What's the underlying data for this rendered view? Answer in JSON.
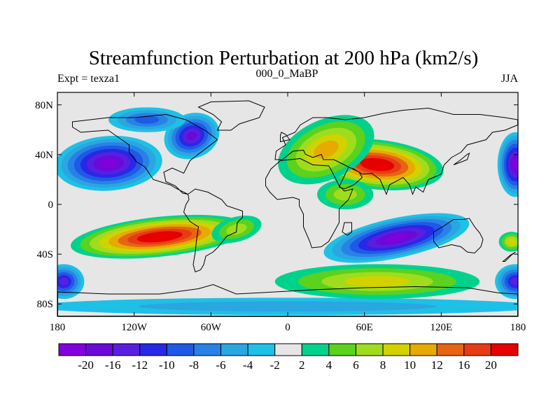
{
  "chart_data": {
    "type": "heatmap",
    "title": "Streamfunction Perturbation at 200 hPa (km2/s)",
    "left_label": "Expt = texza1",
    "center_label": "000_0_MaBP",
    "right_label": "JJA",
    "x_axis": {
      "range": [
        -180,
        180
      ],
      "ticks": [
        {
          "value": -180,
          "label": "180"
        },
        {
          "value": -120,
          "label": "120W"
        },
        {
          "value": -60,
          "label": "60W"
        },
        {
          "value": 0,
          "label": "0"
        },
        {
          "value": 60,
          "label": "60E"
        },
        {
          "value": 120,
          "label": "120E"
        },
        {
          "value": 180,
          "label": "180"
        }
      ]
    },
    "y_axis": {
      "range": [
        -90,
        90
      ],
      "ticks": [
        {
          "value": 80,
          "label": "80N"
        },
        {
          "value": 40,
          "label": "40N"
        },
        {
          "value": 0,
          "label": "0"
        },
        {
          "value": -40,
          "label": "40S"
        },
        {
          "value": -80,
          "label": "80S"
        }
      ]
    },
    "colorbar": {
      "colors": [
        "#8200dc",
        "#6a0ad8",
        "#5a1ee0",
        "#2828e6",
        "#1e5ae6",
        "#2882e6",
        "#2aa6e0",
        "#1ec0e6",
        "#e6e6e6",
        "#00d28c",
        "#5ad21e",
        "#a0dc1e",
        "#d2d200",
        "#e6aa00",
        "#e66414",
        "#e63c14",
        "#e60000"
      ],
      "labels": [
        "-20",
        "-16",
        "-12",
        "-10",
        "-8",
        "-6",
        "-4",
        "-2",
        "2",
        "4",
        "6",
        "8",
        "10",
        "12",
        "16",
        "20"
      ]
    },
    "features": [
      {
        "name": "positive-anomaly-asia",
        "lon": 75,
        "lat": 30,
        "value": 22
      },
      {
        "name": "positive-anomaly-north-atlantic",
        "lon": 20,
        "lat": 45,
        "value": 8
      },
      {
        "name": "positive-anomaly-southeast-pacific",
        "lon": -90,
        "lat": -25,
        "value": 18
      },
      {
        "name": "negative-anomaly-north-pacific",
        "lon": -145,
        "lat": 35,
        "value": -20
      },
      {
        "name": "negative-anomaly-north-america",
        "lon": -75,
        "lat": 55,
        "value": -18
      },
      {
        "name": "negative-anomaly-south-indian",
        "lon": 80,
        "lat": -28,
        "value": -22
      },
      {
        "name": "negative-anomaly-east-pacific-edge",
        "lon": 180,
        "lat": 30,
        "value": -20
      },
      {
        "name": "positive-anomaly-southern-ocean",
        "lon": 100,
        "lat": -58,
        "value": 7
      }
    ]
  }
}
